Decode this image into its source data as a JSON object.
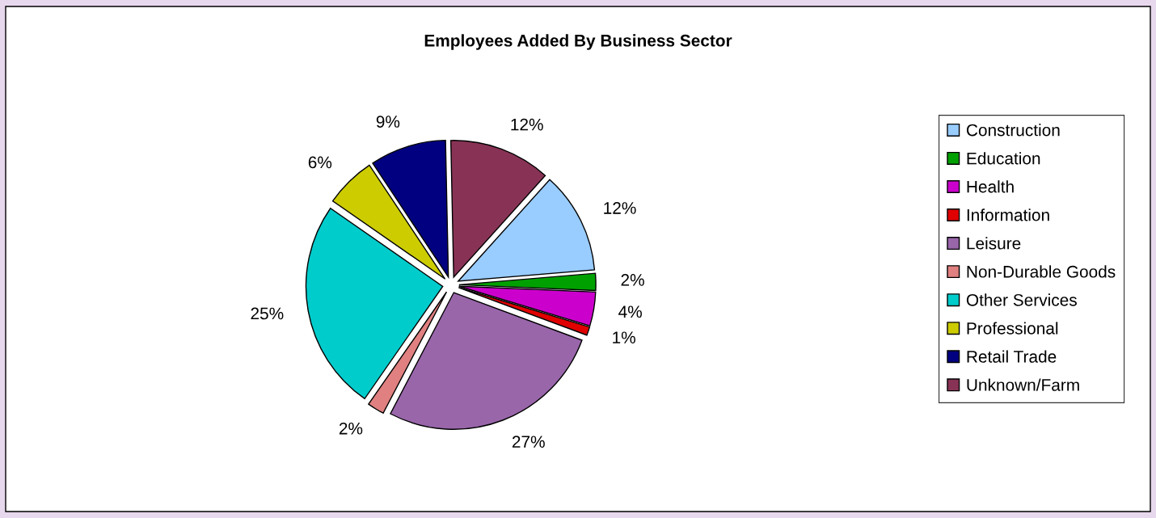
{
  "chart_data": {
    "type": "pie",
    "title": "Employees Added By Business Sector",
    "categories": [
      "Construction",
      "Education",
      "Health",
      "Information",
      "Leisure",
      "Non-Durable Goods",
      "Other Services",
      "Professional",
      "Retail Trade",
      "Unknown/Farm"
    ],
    "values": [
      12,
      2,
      4,
      1,
      27,
      2,
      25,
      6,
      9,
      12
    ],
    "value_labels": [
      "12%",
      "2%",
      "4%",
      "1%",
      "27%",
      "2%",
      "25%",
      "6%",
      "9%",
      "12%"
    ],
    "colors": [
      "#99ccff",
      "#00a000",
      "#cc00cc",
      "#e00000",
      "#9966aa",
      "#e08080",
      "#00cccc",
      "#cccc00",
      "#000080",
      "#883355"
    ],
    "legend": "right"
  }
}
